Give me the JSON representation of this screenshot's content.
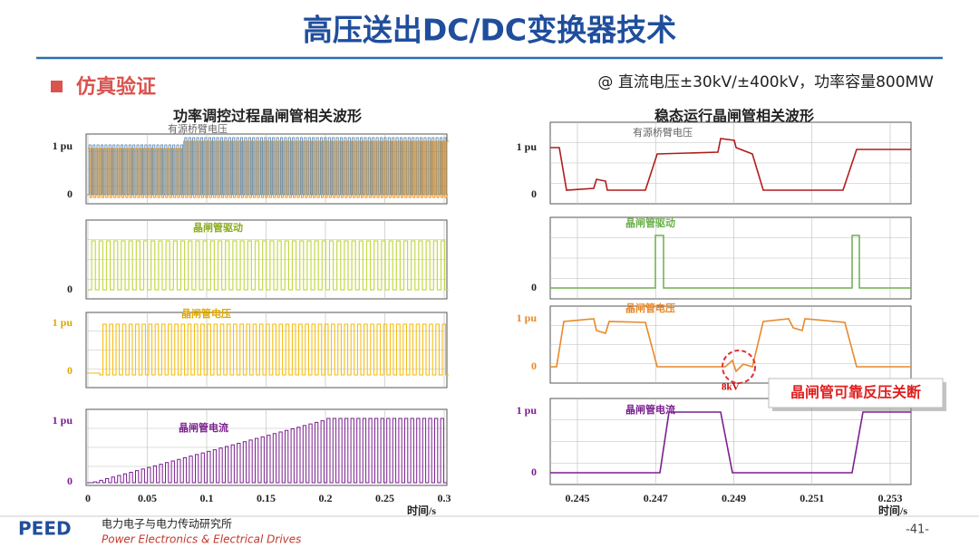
{
  "title": "高压送出DC/DC变换器技术",
  "section": "仿真验证",
  "condition": "@ 直流电压±30kV/±400kV，功率容量800MW",
  "left_panel": {
    "title": "功率调控过程晶闸管相关波形",
    "plots": [
      {
        "label": "有源桥臂电压",
        "y_labels": [
          "1 pu",
          "0"
        ]
      },
      {
        "label": "晶闸管驱动",
        "y_labels": [
          "0"
        ]
      },
      {
        "label": "晶闸管电压",
        "y_labels": [
          "1 pu",
          "0"
        ]
      },
      {
        "label": "晶闸管电流",
        "y_labels": [
          "1 pu",
          "0"
        ]
      }
    ],
    "x_ticks": [
      "0",
      "0.05",
      "0.1",
      "0.15",
      "0.2",
      "0.25",
      "0.3"
    ],
    "x_label": "时间/s"
  },
  "right_panel": {
    "title": "稳态运行晶闸管相关波形",
    "plots": [
      {
        "label": "有源桥臂电压",
        "y_labels": [
          "1 pu",
          "0"
        ]
      },
      {
        "label": "晶闸管驱动",
        "y_labels": [
          "0"
        ]
      },
      {
        "label": "晶闸管电压",
        "y_labels": [
          "1 pu",
          "0"
        ]
      },
      {
        "label": "晶闸管电流",
        "y_labels": [
          "1 pu",
          "0"
        ]
      }
    ],
    "x_ticks": [
      "0.245",
      "0.247",
      "0.249",
      "0.251",
      "0.253"
    ],
    "x_label": "时间/s",
    "annotation": "8kV"
  },
  "callout": "晶闸管可靠反压关断",
  "footer": {
    "logo": "PEED",
    "org": "电力电子与电力传动研究所",
    "org_en": "Power Electronics & Electrical Drives",
    "page": "-41-"
  }
}
